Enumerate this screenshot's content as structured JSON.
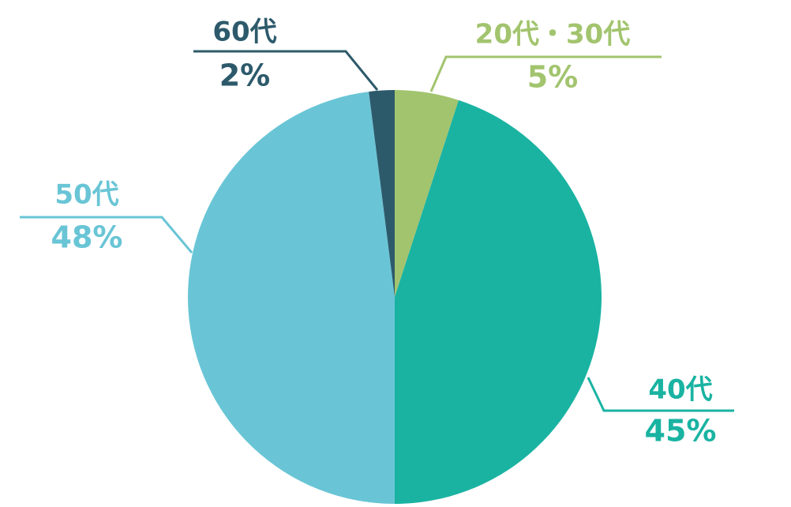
{
  "chart_data": {
    "type": "pie",
    "categories": [
      "20代・30代",
      "40代",
      "50代",
      "60代"
    ],
    "values": [
      5,
      45,
      48,
      2
    ],
    "value_labels": [
      "5%",
      "45%",
      "48%",
      "2%"
    ],
    "colors": [
      "#a2c46e",
      "#1ab3a2",
      "#69c5d6",
      "#2d5a6b"
    ]
  }
}
